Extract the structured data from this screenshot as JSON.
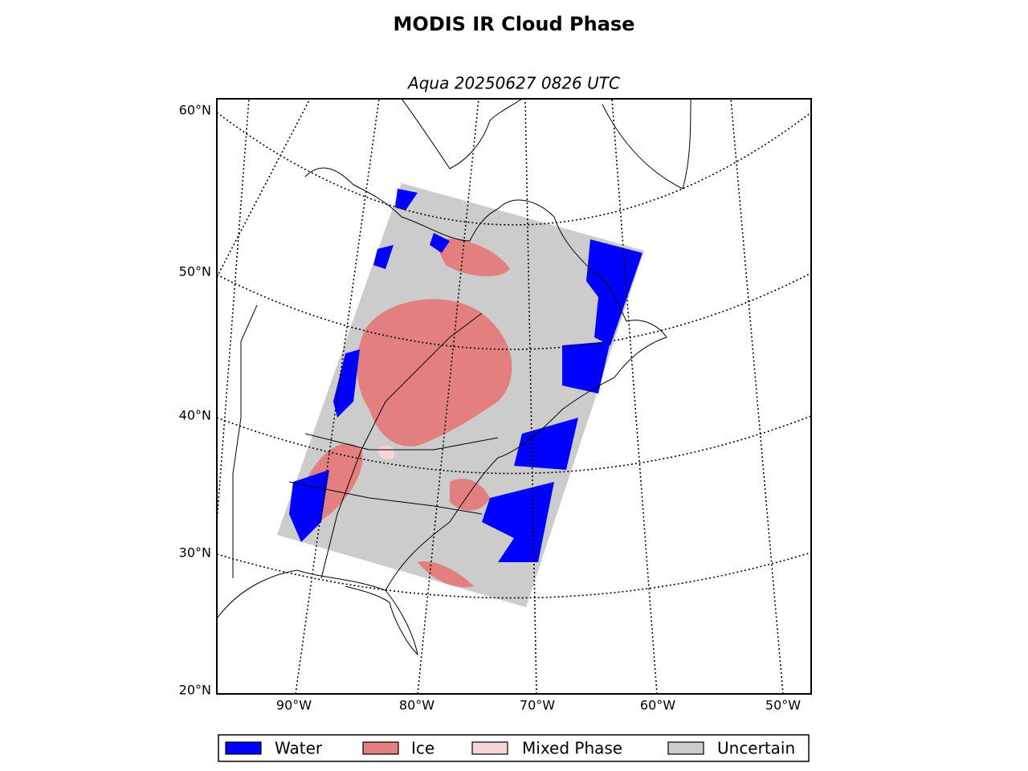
{
  "title": "MODIS IR Cloud Phase",
  "subtitle": "Aqua 20250627 0826 UTC",
  "latitude_labels": [
    "60°N",
    "50°N",
    "40°N",
    "30°N",
    "20°N"
  ],
  "longitude_labels": [
    "90°W",
    "80°W",
    "70°W",
    "60°W",
    "50°W"
  ],
  "legend": [
    {
      "label": "Water",
      "color": "#0000ff"
    },
    {
      "label": "Ice",
      "color": "#e47f7f"
    },
    {
      "label": "Mixed Phase",
      "color": "#f5d5d5"
    },
    {
      "label": "Uncertain",
      "color": "#cccccc"
    }
  ]
}
